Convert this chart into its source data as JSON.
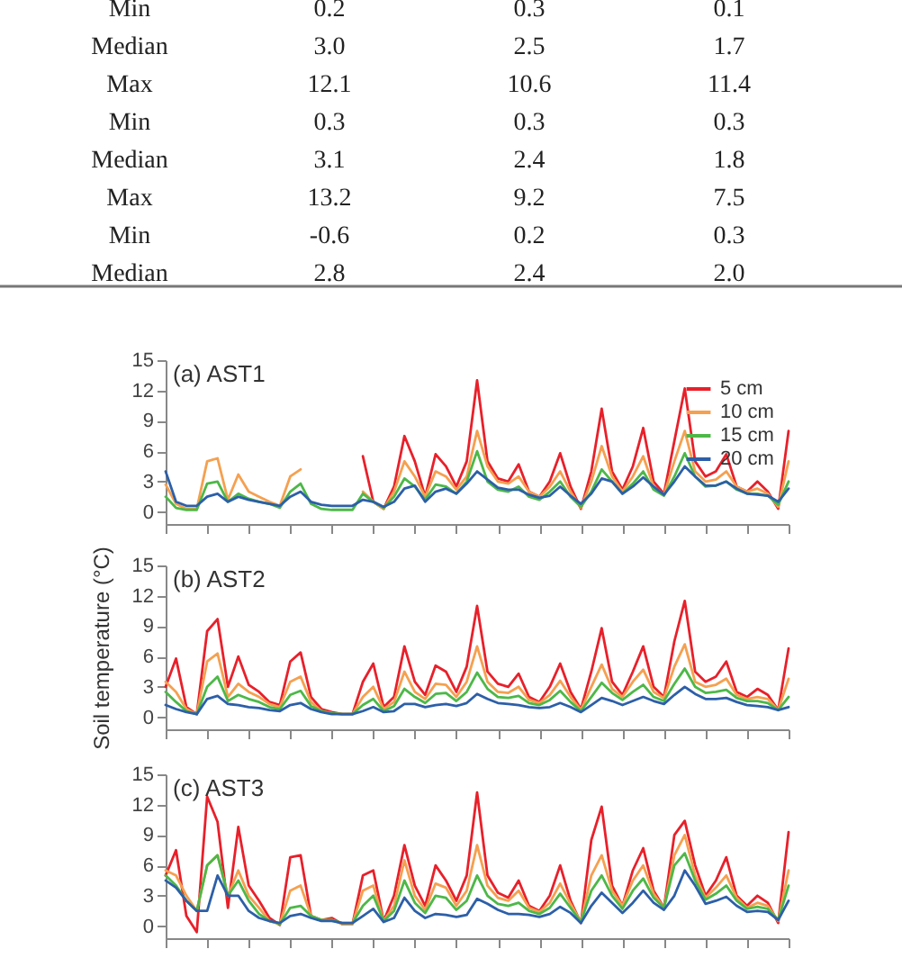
{
  "chart_data": [
    {
      "type": "other",
      "annotations": [
        "Min",
        "0.2",
        "0.3",
        "0.1",
        "Median",
        "3.0",
        "2.5",
        "1.7",
        "Max",
        "12.1",
        "10.6",
        "11.4",
        "Min",
        "0.3",
        "0.3",
        "0.3",
        "Median",
        "3.1",
        "2.4",
        "1.8",
        "Max",
        "13.2",
        "9.2",
        "7.5",
        "Min",
        "-0.6",
        "0.2",
        "0.3",
        "Median",
        "2.8",
        "2.4",
        "2.0"
      ]
    },
    {
      "type": "line",
      "title": "(a) AST1",
      "categories": [
        null,
        null,
        null,
        null,
        null,
        null,
        null,
        null,
        null,
        null,
        null,
        null,
        null,
        null,
        null,
        null,
        null,
        null,
        null,
        null,
        null,
        null,
        null,
        null,
        null,
        null,
        null,
        null,
        null,
        null,
        null,
        null,
        null,
        null,
        null,
        null,
        null,
        null,
        null,
        null,
        null,
        null,
        null,
        null,
        null,
        null,
        null,
        null,
        null,
        null,
        null,
        null,
        null,
        null,
        null,
        null,
        null,
        null,
        null,
        null,
        null
      ],
      "ylim": [
        -1.2,
        15
      ],
      "yticks": [
        0,
        3,
        6,
        9,
        12,
        15
      ],
      "tick_labels": "y",
      "legend": "top right",
      "line_style": "solid",
      "series": [
        {
          "name": "5 cm",
          "color": "#e8202a",
          "values": [
            null,
            null,
            null,
            null,
            null,
            null,
            null,
            null,
            null,
            null,
            null,
            null,
            null,
            null,
            null,
            null,
            null,
            null,
            null,
            5.5,
            1.0,
            0.3,
            2.5,
            7.5,
            5.0,
            1.5,
            5.7,
            4.5,
            2.5,
            5.0,
            13.0,
            5.0,
            3.3,
            3.0,
            4.7,
            2.0,
            1.5,
            3.0,
            5.8,
            2.5,
            0.3,
            4.0,
            10.2,
            4.0,
            2.2,
            4.5,
            8.3,
            3.0,
            1.8,
            7.0,
            12.2,
            5.0,
            3.5,
            4.0,
            5.7,
            2.5,
            2.0,
            3.0,
            2.0,
            0.3,
            8.0
          ]
        },
        {
          "name": "10 cm",
          "color": "#f5a050",
          "values": [
            2.7,
            0.8,
            0.3,
            0.3,
            5.0,
            5.3,
            1.2,
            3.7,
            2.0,
            1.5,
            1.0,
            0.6,
            3.5,
            4.2,
            null,
            null,
            null,
            null,
            null,
            2.0,
            1.0,
            0.3,
            2.0,
            5.0,
            3.5,
            1.5,
            4.0,
            3.5,
            2.2,
            3.5,
            8.0,
            4.5,
            3.0,
            2.8,
            3.5,
            2.0,
            1.5,
            2.5,
            4.0,
            2.0,
            0.4,
            3.0,
            6.5,
            3.5,
            2.0,
            3.5,
            5.5,
            2.5,
            1.7,
            5.0,
            8.0,
            4.0,
            3.0,
            3.2,
            4.0,
            2.5,
            2.0,
            2.3,
            1.8,
            0.5,
            5.0
          ]
        },
        {
          "name": "15 cm",
          "color": "#4db848",
          "values": [
            1.5,
            0.4,
            0.2,
            0.2,
            2.8,
            3.0,
            1.0,
            1.8,
            1.3,
            1.0,
            0.8,
            0.4,
            2.0,
            2.8,
            0.8,
            0.3,
            0.2,
            0.2,
            0.2,
            1.8,
            1.0,
            0.4,
            1.5,
            3.3,
            2.5,
            1.2,
            2.7,
            2.5,
            1.8,
            3.0,
            6.0,
            3.0,
            2.2,
            2.0,
            2.5,
            1.5,
            1.2,
            2.0,
            3.0,
            1.5,
            0.5,
            2.0,
            4.2,
            3.0,
            1.8,
            2.8,
            4.0,
            2.2,
            1.6,
            3.5,
            5.8,
            3.5,
            2.5,
            2.6,
            3.0,
            2.2,
            1.8,
            1.8,
            1.6,
            0.7,
            3.0
          ]
        },
        {
          "name": "20 cm",
          "color": "#2d5fa8",
          "values": [
            4.0,
            1.0,
            0.6,
            0.6,
            1.5,
            1.8,
            1.0,
            1.5,
            1.2,
            1.0,
            0.8,
            0.6,
            1.5,
            2.0,
            1.0,
            0.7,
            0.6,
            0.6,
            0.6,
            1.2,
            1.0,
            0.5,
            1.0,
            2.3,
            2.6,
            1.0,
            2.0,
            2.3,
            1.8,
            2.8,
            4.0,
            3.2,
            2.4,
            2.2,
            2.2,
            1.7,
            1.4,
            1.6,
            2.5,
            1.6,
            0.8,
            1.8,
            3.3,
            3.0,
            1.8,
            2.5,
            3.4,
            2.5,
            1.7,
            3.0,
            4.5,
            3.5,
            2.6,
            2.6,
            3.0,
            2.3,
            1.8,
            1.7,
            1.6,
            1.0,
            2.3
          ]
        }
      ]
    },
    {
      "type": "line",
      "title": "(b) AST2",
      "ylabel": "Soil temperature (°C)",
      "categories": [
        null,
        null,
        null,
        null,
        null,
        null,
        null,
        null,
        null,
        null,
        null,
        null,
        null,
        null,
        null,
        null,
        null,
        null,
        null,
        null,
        null,
        null,
        null,
        null,
        null,
        null,
        null,
        null,
        null,
        null,
        null,
        null,
        null,
        null,
        null,
        null,
        null,
        null,
        null,
        null,
        null,
        null,
        null,
        null,
        null,
        null,
        null,
        null,
        null,
        null,
        null,
        null,
        null,
        null,
        null,
        null,
        null,
        null,
        null,
        null,
        null
      ],
      "ylim": [
        -1.2,
        15
      ],
      "yticks": [
        0,
        3,
        6,
        9,
        12,
        15
      ],
      "tick_labels": "y",
      "line_style": "solid",
      "series": [
        {
          "color": "#e8202a",
          "values": [
            3.0,
            5.8,
            1.0,
            0.3,
            8.5,
            9.7,
            3.0,
            6.0,
            3.2,
            2.5,
            1.5,
            1.2,
            5.5,
            6.4,
            2.0,
            0.8,
            0.5,
            0.3,
            0.3,
            3.5,
            5.3,
            1.0,
            2.0,
            7.0,
            3.5,
            2.2,
            5.1,
            4.5,
            2.5,
            5.0,
            11.0,
            4.5,
            3.3,
            3.0,
            4.3,
            2.0,
            1.5,
            3.0,
            5.3,
            2.5,
            0.8,
            4.5,
            8.8,
            3.5,
            2.2,
            4.5,
            7.0,
            3.0,
            2.0,
            7.5,
            11.5,
            4.5,
            3.5,
            4.0,
            5.5,
            2.5,
            2.0,
            2.8,
            2.2,
            0.7,
            6.8
          ]
        },
        {
          "color": "#f5a050",
          "values": [
            3.5,
            2.5,
            0.8,
            0.3,
            5.5,
            6.3,
            2.0,
            3.3,
            2.5,
            2.0,
            1.3,
            1.0,
            3.5,
            4.0,
            1.5,
            0.6,
            0.4,
            0.3,
            0.3,
            2.0,
            3.0,
            0.8,
            1.5,
            4.5,
            2.5,
            1.8,
            3.3,
            3.2,
            2.0,
            3.5,
            7.0,
            3.5,
            2.5,
            2.4,
            3.0,
            1.7,
            1.4,
            2.2,
            3.6,
            2.0,
            0.7,
            3.0,
            5.2,
            2.8,
            2.0,
            3.5,
            4.7,
            2.5,
            1.9,
            5.0,
            7.2,
            3.5,
            3.0,
            3.2,
            3.8,
            2.2,
            1.8,
            2.0,
            1.8,
            0.7,
            3.8
          ]
        },
        {
          "color": "#4db848",
          "values": [
            2.5,
            1.5,
            0.6,
            0.3,
            3.0,
            4.0,
            1.6,
            2.2,
            1.8,
            1.5,
            1.0,
            0.8,
            2.2,
            2.6,
            1.1,
            0.6,
            0.4,
            0.3,
            0.3,
            1.2,
            1.8,
            0.6,
            1.1,
            2.8,
            2.0,
            1.4,
            2.3,
            2.4,
            1.6,
            2.5,
            4.4,
            2.8,
            2.0,
            1.9,
            2.1,
            1.4,
            1.2,
            1.7,
            2.6,
            1.5,
            0.6,
            2.0,
            3.4,
            2.4,
            1.7,
            2.5,
            3.2,
            2.0,
            1.6,
            3.3,
            4.8,
            3.0,
            2.4,
            2.5,
            2.7,
            1.9,
            1.6,
            1.6,
            1.4,
            0.7,
            2.0
          ]
        },
        {
          "color": "#2d5fa8",
          "values": [
            1.2,
            0.8,
            0.5,
            0.3,
            1.8,
            2.1,
            1.3,
            1.2,
            1.0,
            0.9,
            0.7,
            0.6,
            1.2,
            1.4,
            0.8,
            0.5,
            0.3,
            0.3,
            0.3,
            0.6,
            1.0,
            0.5,
            0.6,
            1.3,
            1.3,
            1.0,
            1.2,
            1.3,
            1.1,
            1.4,
            2.3,
            1.8,
            1.4,
            1.3,
            1.2,
            1.0,
            0.9,
            1.0,
            1.4,
            1.0,
            0.5,
            1.2,
            1.9,
            1.6,
            1.2,
            1.6,
            2.0,
            1.6,
            1.3,
            2.2,
            3.0,
            2.3,
            1.8,
            1.8,
            1.9,
            1.5,
            1.2,
            1.1,
            1.0,
            0.7,
            1.0
          ]
        }
      ]
    },
    {
      "type": "line",
      "title": "(c) AST3",
      "categories": [
        null,
        null,
        null,
        null,
        null,
        null,
        null,
        null,
        null,
        null,
        null,
        null,
        null,
        null,
        null,
        null,
        null,
        null,
        null,
        null,
        null,
        null,
        null,
        null,
        null,
        null,
        null,
        null,
        null,
        null,
        null,
        null,
        null,
        null,
        null,
        null,
        null,
        null,
        null,
        null,
        null,
        null,
        null,
        null,
        null,
        null,
        null,
        null,
        null,
        null,
        null,
        null,
        null,
        null,
        null,
        null,
        null,
        null,
        null,
        null,
        null
      ],
      "ylim": [
        -1.2,
        15
      ],
      "yticks": [
        0,
        3,
        6,
        9,
        12,
        15
      ],
      "tick_labels": "y",
      "line_style": "solid",
      "series": [
        {
          "color": "#e8202a",
          "values": [
            5.0,
            7.5,
            1.0,
            -0.6,
            12.8,
            10.3,
            1.8,
            9.8,
            4.0,
            2.5,
            0.8,
            0.1,
            6.8,
            7.0,
            1.0,
            0.6,
            0.8,
            0.2,
            0.2,
            5.0,
            5.5,
            0.5,
            3.0,
            8.0,
            4.0,
            2.0,
            6.0,
            4.5,
            2.5,
            5.0,
            13.2,
            5.0,
            3.3,
            2.8,
            4.5,
            2.0,
            1.5,
            3.0,
            6.0,
            2.5,
            0.3,
            8.5,
            11.8,
            4.0,
            2.0,
            5.5,
            7.7,
            3.5,
            1.8,
            9.0,
            10.4,
            6.0,
            3.0,
            4.5,
            6.8,
            3.0,
            2.0,
            3.0,
            2.3,
            0.3,
            9.3
          ]
        },
        {
          "color": "#f5a050",
          "values": [
            5.5,
            5.0,
            3.0,
            1.5,
            6.0,
            7.0,
            3.0,
            5.5,
            3.0,
            1.8,
            0.5,
            0.2,
            3.5,
            4.0,
            1.0,
            0.6,
            0.6,
            0.2,
            0.2,
            3.5,
            4.0,
            0.5,
            2.0,
            6.5,
            3.0,
            1.6,
            4.2,
            3.8,
            2.0,
            3.5,
            8.0,
            4.0,
            2.8,
            2.5,
            3.5,
            1.8,
            1.4,
            2.3,
            4.2,
            2.2,
            0.4,
            5.0,
            7.0,
            3.5,
            2.0,
            4.5,
            6.0,
            3.2,
            1.8,
            7.0,
            9.0,
            5.0,
            2.8,
            3.8,
            5.0,
            2.8,
            1.8,
            2.3,
            2.0,
            0.5,
            5.5
          ]
        },
        {
          "color": "#4db848",
          "values": [
            5.0,
            4.0,
            2.5,
            1.5,
            6.0,
            7.0,
            3.0,
            4.5,
            2.5,
            1.2,
            0.5,
            0.2,
            1.8,
            2.0,
            1.0,
            0.6,
            0.6,
            0.3,
            0.3,
            2.0,
            3.0,
            0.5,
            1.5,
            4.5,
            2.3,
            1.3,
            3.0,
            2.8,
            1.6,
            2.5,
            5.0,
            3.0,
            2.2,
            2.0,
            2.3,
            1.5,
            1.2,
            1.8,
            3.2,
            1.8,
            0.4,
            3.5,
            5.0,
            3.0,
            1.7,
            3.5,
            4.7,
            2.8,
            1.8,
            6.0,
            7.2,
            4.5,
            2.6,
            3.2,
            4.0,
            2.5,
            1.7,
            1.9,
            1.7,
            0.6,
            4.0
          ]
        },
        {
          "color": "#2d5fa8",
          "values": [
            4.5,
            3.8,
            2.5,
            1.5,
            1.5,
            5.0,
            3.0,
            3.0,
            1.5,
            0.8,
            0.5,
            0.3,
            1.0,
            1.2,
            0.8,
            0.5,
            0.5,
            0.3,
            0.3,
            1.0,
            1.7,
            0.4,
            0.8,
            2.8,
            1.5,
            0.8,
            1.2,
            1.1,
            0.9,
            1.1,
            2.7,
            2.2,
            1.6,
            1.2,
            1.2,
            1.1,
            0.9,
            1.2,
            1.9,
            1.3,
            0.3,
            2.0,
            3.3,
            2.3,
            1.3,
            2.3,
            3.5,
            2.3,
            1.6,
            3.0,
            5.5,
            4.0,
            2.2,
            2.5,
            2.9,
            2.0,
            1.4,
            1.5,
            1.4,
            0.6,
            2.5
          ]
        }
      ]
    }
  ]
}
